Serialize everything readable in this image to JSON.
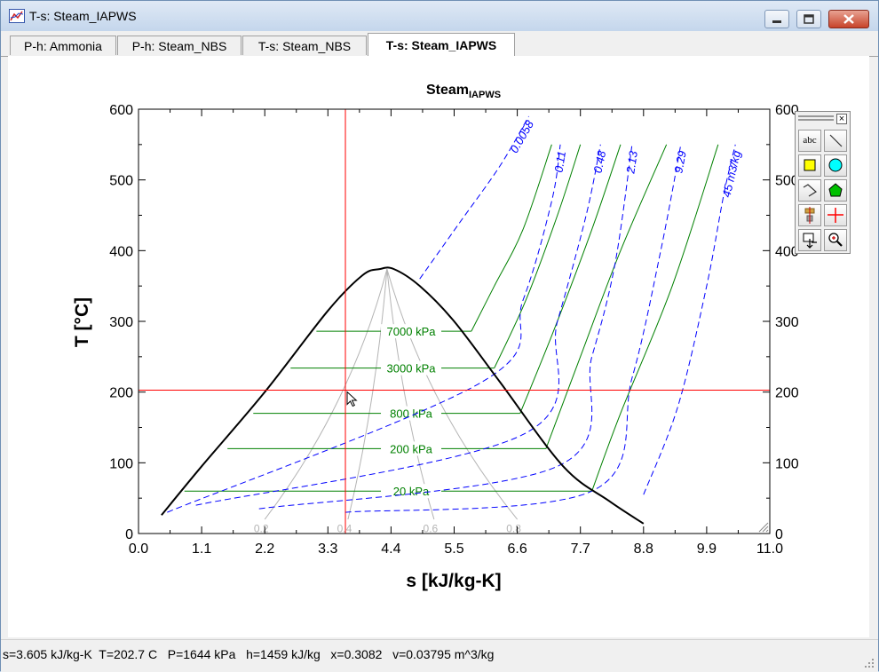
{
  "window": {
    "title": "T-s: Steam_IAPWS"
  },
  "tabs": [
    {
      "label": "P-h: Ammonia",
      "active": false
    },
    {
      "label": "P-h: Steam_NBS",
      "active": false
    },
    {
      "label": "T-s: Steam_NBS",
      "active": false
    },
    {
      "label": "T-s: Steam_IAPWS",
      "active": true
    }
  ],
  "palette": {
    "close": "×",
    "tools": [
      {
        "icon": "text-tool-icon",
        "label": "abc"
      },
      {
        "icon": "line-tool-icon"
      },
      {
        "icon": "rectangle-tool-icon",
        "color": "#ffff00"
      },
      {
        "icon": "ellipse-tool-icon",
        "color": "#00ffff"
      },
      {
        "icon": "polyline-tool-icon"
      },
      {
        "icon": "polygon-tool-icon",
        "color": "#00c000"
      },
      {
        "icon": "align-tool-icon"
      },
      {
        "icon": "crosshair-tool-icon",
        "color": "#ff0000"
      },
      {
        "icon": "move-tool-icon"
      },
      {
        "icon": "zoom-tool-icon"
      }
    ]
  },
  "status": {
    "text": "s=3.605 kJ/kg-K  T=202.7 C   P=1644 kPa   h=1459 kJ/kg   x=0.3082   v=0.03795 m^3/kg"
  },
  "chart_data": {
    "type": "line",
    "title": "Steam",
    "title_subscript": "IAPWS",
    "xlabel": "s [kJ/kg-K]",
    "ylabel": "T [°C]",
    "xlim": [
      0,
      11
    ],
    "ylim": [
      0,
      600
    ],
    "x_ticks": [
      "0.0",
      "1.1",
      "2.2",
      "3.3",
      "4.4",
      "5.5",
      "6.6",
      "7.7",
      "8.8",
      "9.9",
      "11.0"
    ],
    "y_ticks": [
      "0",
      "100",
      "200",
      "300",
      "400",
      "500",
      "600"
    ],
    "grid": false,
    "colors": {
      "saturation": "#000000",
      "isobar": "#008000",
      "isochore": "#0000ff",
      "quality": "#b4b4b4",
      "crosshair": "#ff0000"
    },
    "saturation_dome": [
      [
        0.4,
        26
      ],
      [
        1.1,
        95
      ],
      [
        2.2,
        200
      ],
      [
        3.3,
        315
      ],
      [
        3.9,
        365
      ],
      [
        4.2,
        373.9
      ],
      [
        4.45,
        373.9
      ],
      [
        4.9,
        350
      ],
      [
        5.5,
        300
      ],
      [
        6.3,
        214
      ],
      [
        7.4,
        95
      ],
      [
        8.2,
        46
      ],
      [
        8.8,
        14
      ]
    ],
    "crosshair": {
      "s": 3.605,
      "T": 202.7
    },
    "isobars": [
      {
        "label": "7000 kPa",
        "T_sat": 286,
        "points": [
          [
            3.1,
            286
          ],
          [
            5.8,
            286
          ],
          [
            6.2,
            350
          ],
          [
            6.7,
            430
          ],
          [
            7.2,
            550
          ]
        ]
      },
      {
        "label": "3000 kPa",
        "T_sat": 234,
        "points": [
          [
            2.65,
            234
          ],
          [
            6.2,
            234
          ],
          [
            6.75,
            330
          ],
          [
            7.3,
            450
          ],
          [
            7.7,
            550
          ]
        ]
      },
      {
        "label": "800 kPa",
        "T_sat": 170,
        "points": [
          [
            2.0,
            170
          ],
          [
            6.65,
            170
          ],
          [
            7.25,
            290
          ],
          [
            7.9,
            430
          ],
          [
            8.4,
            550
          ]
        ]
      },
      {
        "label": "200 kPa",
        "T_sat": 120,
        "points": [
          [
            1.55,
            120
          ],
          [
            7.1,
            120
          ],
          [
            7.7,
            250
          ],
          [
            8.4,
            400
          ],
          [
            9.2,
            550
          ]
        ]
      },
      {
        "label": "20 kPa",
        "T_sat": 60,
        "points": [
          [
            0.8,
            60
          ],
          [
            7.9,
            60
          ],
          [
            8.4,
            170
          ],
          [
            9.3,
            350
          ],
          [
            10.1,
            550
          ]
        ]
      }
    ],
    "isochores": [
      {
        "label": "0.0058",
        "points": [
          [
            4.9,
            360
          ],
          [
            5.6,
            440
          ],
          [
            6.3,
            520
          ],
          [
            6.8,
            590
          ]
        ]
      },
      {
        "label": "0.11",
        "points": [
          [
            0.5,
            30
          ],
          [
            6.0,
            215
          ],
          [
            6.7,
            330
          ],
          [
            7.2,
            470
          ],
          [
            7.35,
            550
          ]
        ]
      },
      {
        "label": "0.48",
        "points": [
          [
            1.0,
            40
          ],
          [
            6.7,
            140
          ],
          [
            7.3,
            300
          ],
          [
            7.8,
            450
          ],
          [
            8.05,
            550
          ]
        ]
      },
      {
        "label": "2.13",
        "points": [
          [
            2.1,
            35
          ],
          [
            7.3,
            95
          ],
          [
            7.9,
            250
          ],
          [
            8.3,
            380
          ],
          [
            8.6,
            550
          ]
        ]
      },
      {
        "label": "9.29",
        "points": [
          [
            3.6,
            30
          ],
          [
            7.9,
            60
          ],
          [
            8.6,
            220
          ],
          [
            9.1,
            400
          ],
          [
            9.45,
            550
          ]
        ]
      },
      {
        "label": "45 m3/kg",
        "points": [
          [
            8.8,
            55
          ],
          [
            9.4,
            180
          ],
          [
            9.9,
            350
          ],
          [
            10.2,
            480
          ],
          [
            10.4,
            550
          ]
        ]
      }
    ],
    "quality_lines": [
      {
        "label": "0.2",
        "x_bottom": 2.2
      },
      {
        "label": "0.4",
        "x_bottom": 3.65
      },
      {
        "label": "0.6",
        "x_bottom": 5.15
      },
      {
        "label": "0.8",
        "x_bottom": 6.6
      }
    ]
  }
}
